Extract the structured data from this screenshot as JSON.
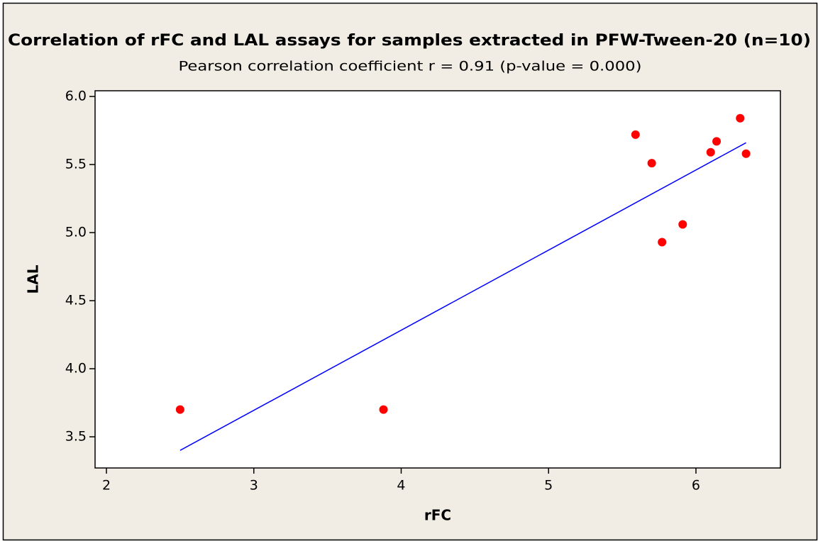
{
  "chart_data": {
    "type": "scatter",
    "title": "Correlation of rFC and LAL assays for samples extracted in PFW-Tween-20 (n=10)",
    "subtitle": "Pearson correlation coefficient r = 0.91 (p-value = 0.000)",
    "x_label": "rFC",
    "y_label": "LAL",
    "x": [
      2.5,
      3.88,
      5.59,
      5.7,
      5.77,
      5.91,
      6.1,
      6.14,
      6.3,
      6.34
    ],
    "y": [
      3.7,
      3.7,
      5.72,
      5.51,
      4.93,
      5.06,
      5.59,
      5.67,
      5.84,
      5.58
    ],
    "color": "#ff0000",
    "fit_line": {
      "x": [
        2.5,
        6.34
      ],
      "y": [
        3.4,
        5.66
      ],
      "color": "#0000ff"
    },
    "xlim": [
      1.923,
      6.573
    ],
    "ylim": [
      3.271,
      6.042
    ],
    "xticks": [
      2,
      3,
      4,
      5,
      6
    ],
    "yticks": [
      {
        "value": 3.5,
        "label": "3.5"
      },
      {
        "value": 4,
        "label": "4.0"
      },
      {
        "value": 4.5,
        "label": "4.5"
      },
      {
        "value": 5,
        "label": "5.0"
      },
      {
        "value": 5.5,
        "label": "5.5"
      },
      {
        "value": 6,
        "label": "6.0"
      }
    ]
  }
}
